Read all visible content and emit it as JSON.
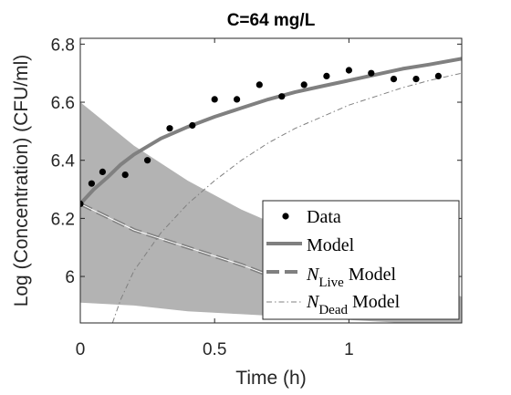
{
  "chart_data": {
    "type": "line",
    "title": "C=64 mg/L",
    "xlabel": "Time (h)",
    "ylabel": "Log (Concentration) (CFU/ml)",
    "xlim": [
      0,
      1.42
    ],
    "ylim": [
      5.84,
      6.82
    ],
    "x_ticks": [
      0,
      0.5,
      1
    ],
    "x_tick_labels": [
      "0",
      "0.5",
      "1"
    ],
    "y_ticks": [
      6.0,
      6.2,
      6.4,
      6.6,
      6.8
    ],
    "y_tick_labels": [
      "6",
      "6.2",
      "6.4",
      "6.6",
      "6.8"
    ],
    "grid": false,
    "legend_position": "bottom-right",
    "legend": [
      {
        "series": "data",
        "label": "Data"
      },
      {
        "series": "model",
        "label": "Model"
      },
      {
        "series": "live",
        "label_main": "N",
        "label_sub": "Live",
        "label_suffix": " Model"
      },
      {
        "series": "dead",
        "label_main": "N",
        "label_sub": "Dead",
        "label_suffix": " Model"
      }
    ],
    "series": [
      {
        "key": "data",
        "kind": "scatter",
        "color": "#000000",
        "x": [
          0,
          0.042,
          0.083,
          0.167,
          0.25,
          0.333,
          0.417,
          0.5,
          0.583,
          0.667,
          0.75,
          0.833,
          0.917,
          1.0,
          1.083,
          1.167,
          1.25,
          1.333
        ],
        "y": [
          6.25,
          6.32,
          6.36,
          6.35,
          6.4,
          6.51,
          6.52,
          6.61,
          6.61,
          6.66,
          6.62,
          6.66,
          6.69,
          6.71,
          6.7,
          6.68,
          6.68,
          6.69
        ]
      },
      {
        "key": "model",
        "kind": "line",
        "color": "#808080",
        "x": [
          0,
          0.05,
          0.1,
          0.15,
          0.2,
          0.3,
          0.4,
          0.5,
          0.6,
          0.7,
          0.8,
          0.9,
          1.0,
          1.1,
          1.2,
          1.3,
          1.42
        ],
        "y": [
          6.25,
          6.3,
          6.34,
          6.385,
          6.42,
          6.475,
          6.515,
          6.55,
          6.58,
          6.61,
          6.635,
          6.655,
          6.675,
          6.695,
          6.715,
          6.73,
          6.75
        ]
      },
      {
        "key": "live",
        "kind": "line",
        "color": "#808080",
        "x": [
          0,
          0.2,
          0.4,
          0.6,
          0.8,
          1.0
        ],
        "y": [
          6.25,
          6.16,
          6.1,
          6.04,
          5.97,
          5.91
        ]
      },
      {
        "key": "dead",
        "kind": "line",
        "color": "#808080",
        "x": [
          0.12,
          0.15,
          0.2,
          0.3,
          0.4,
          0.5,
          0.6,
          0.7,
          0.8,
          0.9,
          1.0,
          1.1,
          1.2,
          1.3,
          1.42
        ],
        "y": [
          5.84,
          5.92,
          6.02,
          6.15,
          6.25,
          6.33,
          6.4,
          6.46,
          6.51,
          6.55,
          6.59,
          6.62,
          6.65,
          6.675,
          6.7
        ]
      },
      {
        "key": "band",
        "kind": "area",
        "color": "#b3b3b3",
        "x": [
          0,
          0.2,
          0.4,
          0.6,
          0.8,
          1.0,
          1.2,
          1.42
        ],
        "y_upper": [
          6.6,
          6.45,
          6.33,
          6.23,
          6.15,
          6.07,
          6.0,
          5.93
        ],
        "y_lower": [
          5.91,
          5.9,
          5.88,
          5.87,
          5.86,
          5.85,
          5.84,
          5.84
        ]
      }
    ]
  }
}
